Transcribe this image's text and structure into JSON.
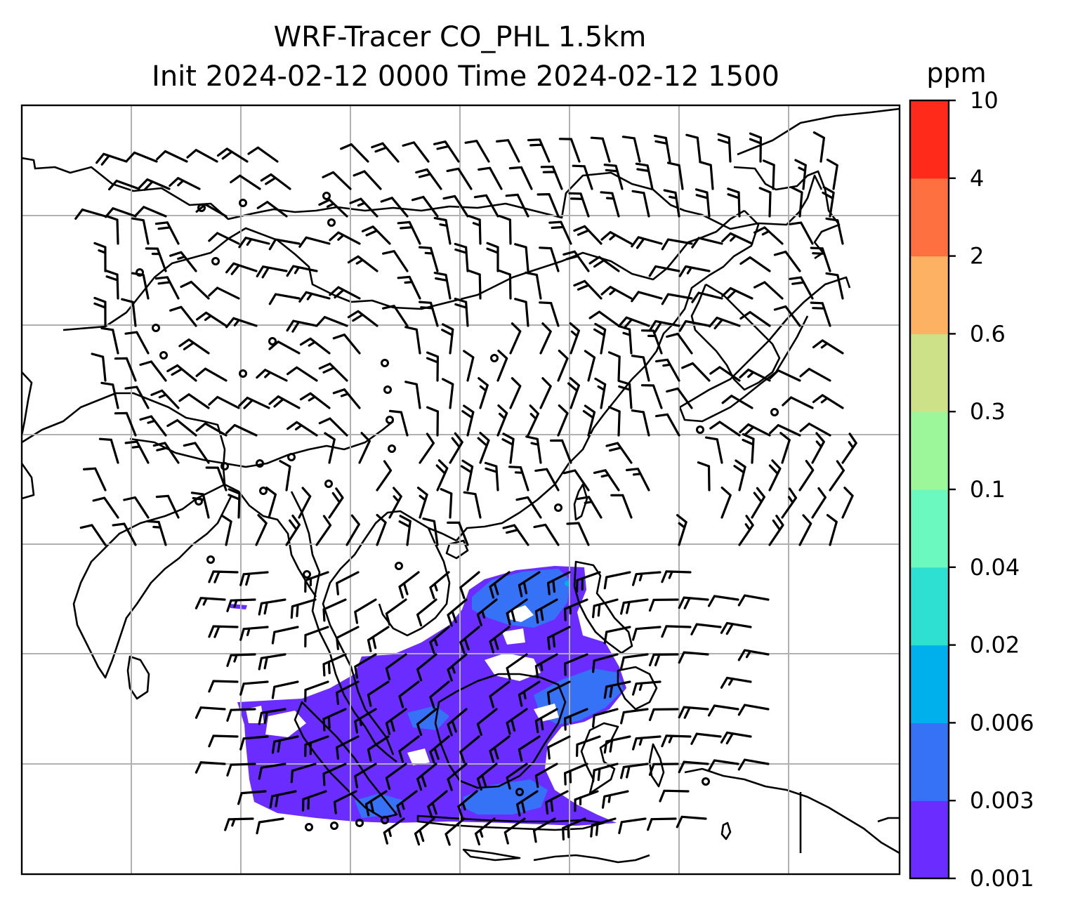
{
  "title_line1": "WRF-Tracer CO_PHL 1.5km",
  "title_line2": "Init 2024-02-12 0000 Time 2024-02-12 1500",
  "colorbar": {
    "unit": "ppm",
    "levels": [
      "0.001",
      "0.003",
      "0.006",
      "0.02",
      "0.04",
      "0.1",
      "0.3",
      "0.6",
      "2",
      "4",
      "10"
    ],
    "colors": [
      "#6a2cff",
      "#3572f5",
      "#00b0ec",
      "#2ee0d2",
      "#6cf9bf",
      "#9cf79a",
      "#cde189",
      "#fdb163",
      "#ff7040",
      "#ff2a1a"
    ]
  },
  "colors": {
    "tracer_low": "#6a2cff",
    "tracer_mid": "#3572f5",
    "tracer_cyan": "#00b0ec",
    "coastline": "#000000",
    "gridline": "#b0b0b0"
  }
}
